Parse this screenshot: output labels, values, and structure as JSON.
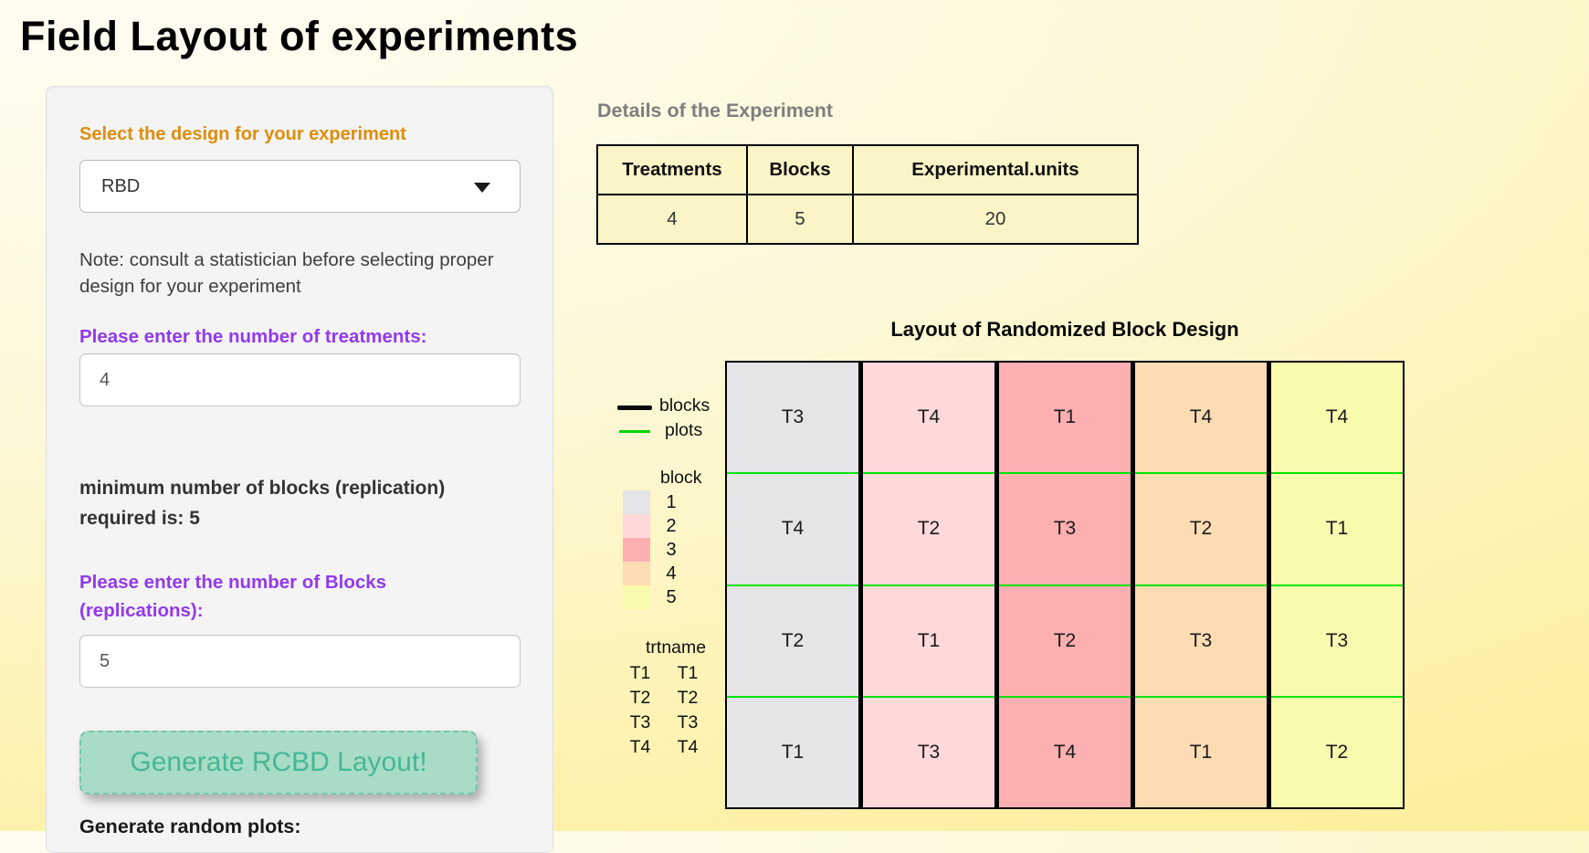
{
  "page": {
    "title": "Field Layout of experiments"
  },
  "sidebar": {
    "design_label": "Select the design for your experiment",
    "design_value": "RBD",
    "note": "Note: consult a statistician before selecting proper design for your experiment",
    "treatments_label": "Please enter the number of treatments:",
    "treatments_value": "4",
    "min_blocks_text": "minimum number of blocks (replication) required is: 5",
    "blocks_label": "Please enter the number of Blocks (replications):",
    "blocks_value": "5",
    "generate_button": "Generate RCBD Layout!",
    "random_plots_label": "Generate random plots:"
  },
  "details": {
    "heading": "Details of the Experiment",
    "table": {
      "headers": [
        "Treatments",
        "Blocks",
        "Experimental.units"
      ],
      "values": [
        "4",
        "5",
        "20"
      ]
    }
  },
  "plot": {
    "title": "Layout of Randomized Block Design",
    "legend": {
      "blocks_line_label": "blocks",
      "plots_line_label": "plots",
      "block_header": "block",
      "trtname_header": "trtname",
      "treatments": [
        [
          "T1",
          "T1"
        ],
        [
          "T2",
          "T2"
        ],
        [
          "T3",
          "T3"
        ],
        [
          "T4",
          "T4"
        ]
      ]
    },
    "grid": {
      "columns": [
        {
          "block": "1",
          "color": "#e5e4e6",
          "cells": [
            "T3",
            "T4",
            "T2",
            "T1"
          ]
        },
        {
          "block": "2",
          "color": "#ffd8da",
          "cells": [
            "T4",
            "T2",
            "T1",
            "T3"
          ]
        },
        {
          "block": "3",
          "color": "#feafb1",
          "cells": [
            "T1",
            "T3",
            "T2",
            "T4"
          ]
        },
        {
          "block": "4",
          "color": "#fddcb4",
          "cells": [
            "T4",
            "T2",
            "T3",
            "T1"
          ]
        },
        {
          "block": "5",
          "color": "#f8faae",
          "cells": [
            "T4",
            "T1",
            "T3",
            "T2"
          ]
        }
      ]
    }
  },
  "colors": {
    "design_label_orange": "#df8d0c",
    "input_label_purple": "#9239ee",
    "button_bg": "#a9dcc7",
    "button_text": "#45b795",
    "plot_line_green": "#00e400",
    "block_border_black": "#000000",
    "table_bg": "#faf4c6"
  }
}
